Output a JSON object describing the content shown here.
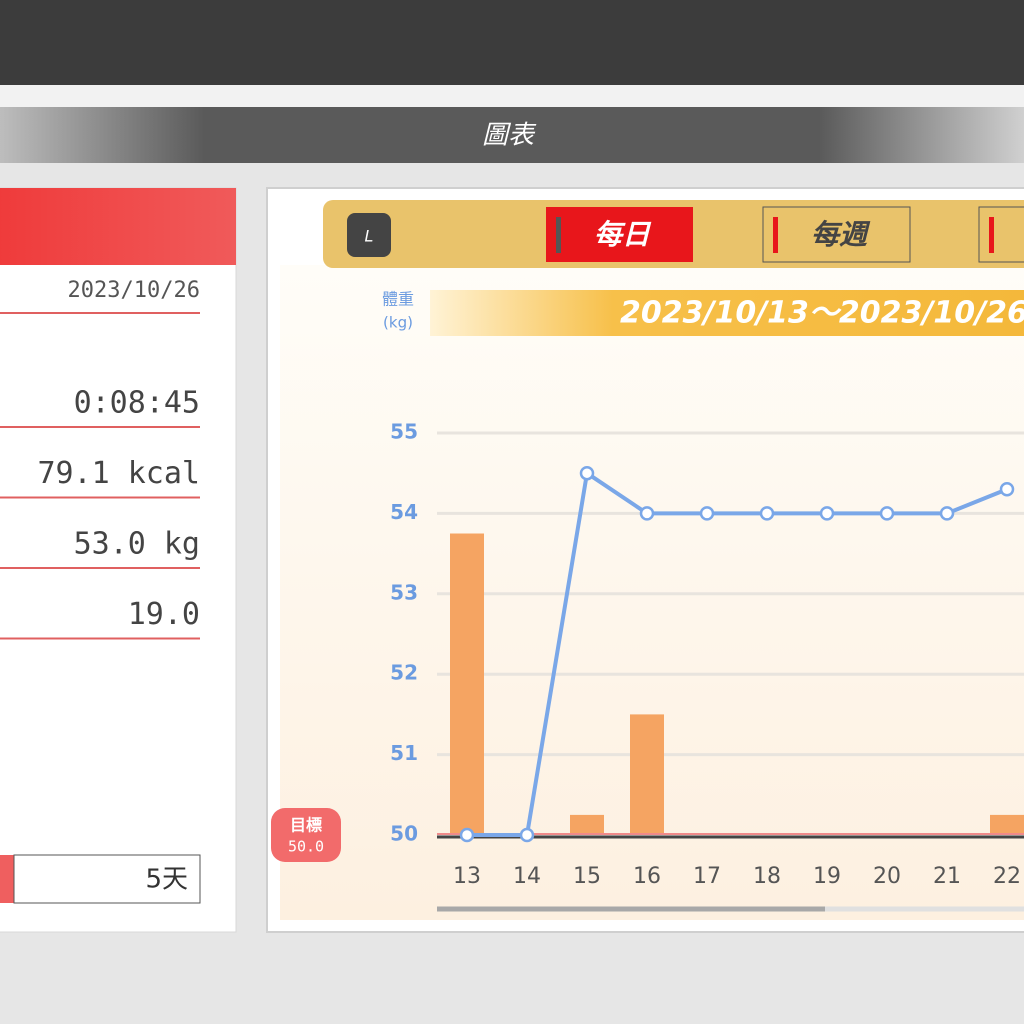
{
  "header": {
    "title": "圖表"
  },
  "summary": {
    "date": "2023/10/26",
    "rows": [
      "0:08:45",
      "79.1 kcal",
      "53.0 kg",
      "19.0"
    ],
    "days": "5天"
  },
  "tabs": {
    "icon": "L",
    "items": [
      "每日",
      "每週"
    ]
  },
  "chart_data": {
    "type": "combo",
    "y_label": "體重",
    "y_unit": "(kg)",
    "date_range": "2023/10/13～2023/10/26",
    "goal_label": "目標",
    "goal_value": "50.0",
    "categories": [
      "13",
      "14",
      "15",
      "16",
      "17",
      "18",
      "19",
      "20",
      "21",
      "22"
    ],
    "series": [
      {
        "type": "bar",
        "color": "#f5a462",
        "values": [
          53.75,
          null,
          50.25,
          51.5,
          null,
          null,
          null,
          null,
          null,
          50.25
        ]
      },
      {
        "type": "line",
        "color": "#7aa7e8",
        "values": [
          50,
          50,
          54.5,
          54,
          54,
          54,
          54,
          54,
          54,
          54.3
        ]
      }
    ],
    "ylim": [
      50,
      55
    ],
    "yticks": [
      50,
      51,
      52,
      53,
      54,
      55
    ],
    "grid": true
  }
}
